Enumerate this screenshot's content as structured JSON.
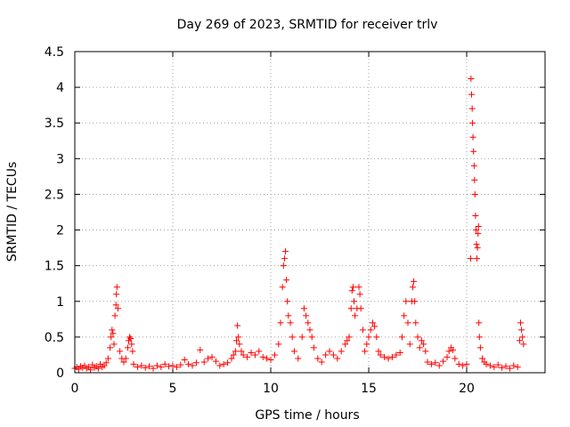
{
  "chart_data": {
    "type": "scatter",
    "title": "Day 269 of 2023, SRMTID for receiver trlv",
    "xlabel": "GPS time / hours",
    "ylabel": "SRMTID / TECUs",
    "xlim": [
      0,
      24
    ],
    "ylim": [
      0,
      4.5
    ],
    "grid": true,
    "marker": "+",
    "color": "#ff0000",
    "xticks": [
      {
        "value": 0,
        "label": "0"
      },
      {
        "value": 5,
        "label": "5"
      },
      {
        "value": 10,
        "label": "10"
      },
      {
        "value": 15,
        "label": "15"
      },
      {
        "value": 20,
        "label": "20"
      }
    ],
    "yticks": [
      {
        "value": 0,
        "label": "0"
      },
      {
        "value": 0.5,
        "label": "0.5"
      },
      {
        "value": 1,
        "label": "1"
      },
      {
        "value": 1.5,
        "label": "1.5"
      },
      {
        "value": 2,
        "label": "2"
      },
      {
        "value": 2.5,
        "label": "2.5"
      },
      {
        "value": 3,
        "label": "3"
      },
      {
        "value": 3.5,
        "label": "3.5"
      },
      {
        "value": 4,
        "label": "4"
      },
      {
        "value": 4.5,
        "label": "4.5"
      }
    ],
    "series": [
      {
        "name": "SRMTID",
        "points": [
          [
            0.0,
            0.06
          ],
          [
            0.1,
            0.08
          ],
          [
            0.2,
            0.05
          ],
          [
            0.3,
            0.09
          ],
          [
            0.4,
            0.07
          ],
          [
            0.5,
            0.1
          ],
          [
            0.6,
            0.06
          ],
          [
            0.7,
            0.08
          ],
          [
            0.8,
            0.04
          ],
          [
            0.9,
            0.11
          ],
          [
            1.0,
            0.07
          ],
          [
            1.1,
            0.09
          ],
          [
            1.2,
            0.06
          ],
          [
            1.3,
            0.12
          ],
          [
            1.4,
            0.08
          ],
          [
            1.5,
            0.1
          ],
          [
            1.6,
            0.14
          ],
          [
            1.7,
            0.2
          ],
          [
            1.8,
            0.35
          ],
          [
            1.85,
            0.5
          ],
          [
            1.9,
            0.6
          ],
          [
            1.95,
            0.55
          ],
          [
            2.0,
            0.4
          ],
          [
            2.05,
            0.8
          ],
          [
            2.1,
            0.95
          ],
          [
            2.12,
            1.1
          ],
          [
            2.15,
            1.2
          ],
          [
            2.2,
            0.9
          ],
          [
            2.3,
            0.3
          ],
          [
            2.4,
            0.2
          ],
          [
            2.5,
            0.15
          ],
          [
            2.6,
            0.2
          ],
          [
            2.7,
            0.35
          ],
          [
            2.75,
            0.45
          ],
          [
            2.8,
            0.5
          ],
          [
            2.85,
            0.48
          ],
          [
            2.9,
            0.4
          ],
          [
            2.95,
            0.3
          ],
          [
            3.0,
            0.12
          ],
          [
            3.2,
            0.08
          ],
          [
            3.4,
            0.1
          ],
          [
            3.6,
            0.07
          ],
          [
            3.8,
            0.09
          ],
          [
            4.0,
            0.06
          ],
          [
            4.2,
            0.1
          ],
          [
            4.4,
            0.08
          ],
          [
            4.6,
            0.12
          ],
          [
            4.8,
            0.09
          ],
          [
            5.0,
            0.1
          ],
          [
            5.2,
            0.08
          ],
          [
            5.4,
            0.11
          ],
          [
            5.6,
            0.18
          ],
          [
            5.8,
            0.12
          ],
          [
            6.0,
            0.1
          ],
          [
            6.2,
            0.14
          ],
          [
            6.4,
            0.32
          ],
          [
            6.6,
            0.15
          ],
          [
            6.8,
            0.2
          ],
          [
            7.0,
            0.22
          ],
          [
            7.2,
            0.16
          ],
          [
            7.4,
            0.1
          ],
          [
            7.6,
            0.12
          ],
          [
            7.8,
            0.14
          ],
          [
            8.0,
            0.2
          ],
          [
            8.1,
            0.25
          ],
          [
            8.2,
            0.3
          ],
          [
            8.25,
            0.45
          ],
          [
            8.3,
            0.66
          ],
          [
            8.35,
            0.5
          ],
          [
            8.4,
            0.4
          ],
          [
            8.5,
            0.3
          ],
          [
            8.6,
            0.25
          ],
          [
            8.8,
            0.22
          ],
          [
            9.0,
            0.28
          ],
          [
            9.2,
            0.25
          ],
          [
            9.4,
            0.3
          ],
          [
            9.6,
            0.22
          ],
          [
            9.8,
            0.2
          ],
          [
            10.0,
            0.18
          ],
          [
            10.2,
            0.25
          ],
          [
            10.4,
            0.4
          ],
          [
            10.5,
            0.7
          ],
          [
            10.6,
            1.2
          ],
          [
            10.65,
            1.5
          ],
          [
            10.7,
            1.6
          ],
          [
            10.75,
            1.7
          ],
          [
            10.8,
            1.3
          ],
          [
            10.85,
            1.0
          ],
          [
            10.9,
            0.8
          ],
          [
            11.0,
            0.7
          ],
          [
            11.1,
            0.5
          ],
          [
            11.2,
            0.3
          ],
          [
            11.4,
            0.2
          ],
          [
            11.6,
            0.5
          ],
          [
            11.7,
            0.9
          ],
          [
            11.8,
            0.8
          ],
          [
            11.9,
            0.7
          ],
          [
            12.0,
            0.6
          ],
          [
            12.1,
            0.5
          ],
          [
            12.2,
            0.35
          ],
          [
            12.4,
            0.2
          ],
          [
            12.6,
            0.15
          ],
          [
            12.8,
            0.25
          ],
          [
            13.0,
            0.3
          ],
          [
            13.2,
            0.25
          ],
          [
            13.4,
            0.2
          ],
          [
            13.6,
            0.3
          ],
          [
            13.8,
            0.4
          ],
          [
            13.9,
            0.45
          ],
          [
            14.0,
            0.5
          ],
          [
            14.1,
            0.9
          ],
          [
            14.15,
            1.15
          ],
          [
            14.2,
            1.2
          ],
          [
            14.25,
            1.0
          ],
          [
            14.3,
            0.8
          ],
          [
            14.4,
            0.9
          ],
          [
            14.5,
            1.2
          ],
          [
            14.55,
            1.1
          ],
          [
            14.6,
            0.9
          ],
          [
            14.7,
            0.6
          ],
          [
            14.8,
            0.3
          ],
          [
            14.9,
            0.4
          ],
          [
            15.0,
            0.5
          ],
          [
            15.1,
            0.6
          ],
          [
            15.2,
            0.7
          ],
          [
            15.3,
            0.65
          ],
          [
            15.4,
            0.5
          ],
          [
            15.5,
            0.3
          ],
          [
            15.6,
            0.25
          ],
          [
            15.8,
            0.22
          ],
          [
            16.0,
            0.2
          ],
          [
            16.2,
            0.22
          ],
          [
            16.4,
            0.25
          ],
          [
            16.6,
            0.28
          ],
          [
            16.7,
            0.5
          ],
          [
            16.8,
            0.8
          ],
          [
            16.9,
            1.0
          ],
          [
            17.0,
            0.7
          ],
          [
            17.1,
            0.4
          ],
          [
            17.2,
            1.0
          ],
          [
            17.25,
            1.2
          ],
          [
            17.3,
            1.28
          ],
          [
            17.35,
            1.0
          ],
          [
            17.4,
            0.7
          ],
          [
            17.5,
            0.5
          ],
          [
            17.6,
            0.35
          ],
          [
            17.7,
            0.45
          ],
          [
            17.8,
            0.4
          ],
          [
            17.9,
            0.3
          ],
          [
            18.0,
            0.15
          ],
          [
            18.2,
            0.12
          ],
          [
            18.4,
            0.14
          ],
          [
            18.6,
            0.1
          ],
          [
            18.8,
            0.16
          ],
          [
            19.0,
            0.22
          ],
          [
            19.1,
            0.3
          ],
          [
            19.2,
            0.35
          ],
          [
            19.3,
            0.32
          ],
          [
            19.4,
            0.2
          ],
          [
            19.6,
            0.12
          ],
          [
            19.8,
            0.1
          ],
          [
            20.0,
            0.12
          ],
          [
            20.2,
            1.6
          ],
          [
            20.22,
            4.12
          ],
          [
            20.25,
            3.9
          ],
          [
            20.28,
            3.7
          ],
          [
            20.3,
            3.5
          ],
          [
            20.32,
            3.3
          ],
          [
            20.35,
            3.1
          ],
          [
            20.38,
            2.9
          ],
          [
            20.4,
            2.7
          ],
          [
            20.42,
            2.5
          ],
          [
            20.45,
            2.2
          ],
          [
            20.48,
            2.0
          ],
          [
            20.5,
            1.8
          ],
          [
            20.52,
            1.6
          ],
          [
            20.55,
            1.75
          ],
          [
            20.58,
            1.95
          ],
          [
            20.6,
            2.05
          ],
          [
            20.62,
            0.7
          ],
          [
            20.65,
            0.5
          ],
          [
            20.7,
            0.35
          ],
          [
            20.8,
            0.2
          ],
          [
            20.9,
            0.15
          ],
          [
            21.0,
            0.12
          ],
          [
            21.2,
            0.1
          ],
          [
            21.4,
            0.08
          ],
          [
            21.6,
            0.11
          ],
          [
            21.8,
            0.07
          ],
          [
            22.0,
            0.09
          ],
          [
            22.2,
            0.06
          ],
          [
            22.4,
            0.1
          ],
          [
            22.6,
            0.08
          ],
          [
            22.7,
            0.45
          ],
          [
            22.75,
            0.7
          ],
          [
            22.8,
            0.6
          ],
          [
            22.85,
            0.5
          ],
          [
            22.9,
            0.4
          ]
        ]
      }
    ]
  }
}
